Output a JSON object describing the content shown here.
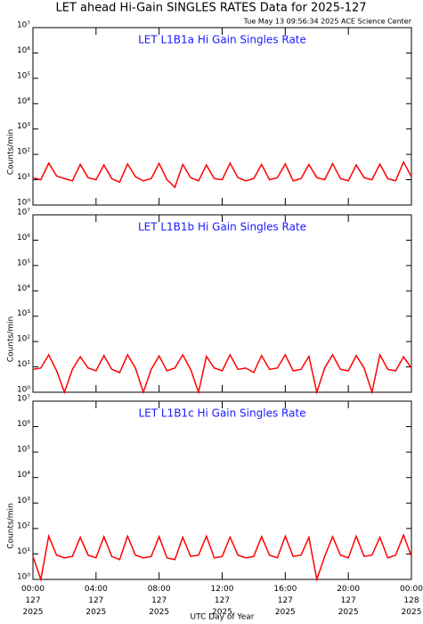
{
  "title": "LET ahead Hi-Gain SINGLES RATES Data for 2025-127",
  "timestamp": "Tue May 13 09:56:34 2025 ACE Science Center",
  "chart_data": [
    {
      "type": "line",
      "title": "LET L1B1a Hi Gain Singles Rate",
      "ylabel": "Counts/min",
      "log_scale": true,
      "color": "#ff0000",
      "ylim": [
        1,
        10000000
      ],
      "yticks": [
        {
          "value": 1,
          "label": "10⁰"
        },
        {
          "value": 10,
          "label": "10¹"
        },
        {
          "value": 100,
          "label": "10²"
        },
        {
          "value": 1000,
          "label": "10³"
        },
        {
          "value": 10000,
          "label": "10⁴"
        },
        {
          "value": 100000,
          "label": "10⁵"
        },
        {
          "value": 1000000,
          "label": "10⁶"
        },
        {
          "value": 10000000,
          "label": "10⁷"
        }
      ],
      "xlim": [
        0,
        24
      ],
      "xticks": [
        0,
        4,
        8,
        12,
        16,
        20,
        24
      ],
      "x": [
        0,
        0.5,
        1,
        1.5,
        2,
        2.5,
        3,
        3.5,
        4,
        4.5,
        5,
        5.5,
        6,
        6.5,
        7,
        7.5,
        8,
        8.5,
        9,
        9.5,
        10,
        10.5,
        11,
        11.5,
        12,
        12.5,
        13,
        13.5,
        14,
        14.5,
        15,
        15.5,
        16,
        16.5,
        17,
        17.5,
        18,
        18.5,
        19,
        19.5,
        20,
        20.5,
        21,
        21.5,
        22,
        22.5,
        23,
        23.5,
        24
      ],
      "values": [
        12,
        10,
        45,
        14,
        11,
        9,
        40,
        12,
        10,
        38,
        11,
        8,
        42,
        13,
        9,
        11,
        44,
        10,
        5,
        40,
        12,
        9,
        38,
        11,
        10,
        45,
        12,
        9,
        11,
        40,
        10,
        12,
        42,
        9,
        11,
        40,
        12,
        10,
        43,
        11,
        9,
        38,
        12,
        10,
        41,
        11,
        9,
        50,
        13
      ]
    },
    {
      "type": "line",
      "title": "LET L1B1b Hi Gain Singles Rate",
      "ylabel": "Counts/min",
      "log_scale": true,
      "color": "#ff0000",
      "ylim": [
        1,
        10000000
      ],
      "yticks": [
        {
          "value": 1,
          "label": "10⁰"
        },
        {
          "value": 10,
          "label": "10¹"
        },
        {
          "value": 100,
          "label": "10²"
        },
        {
          "value": 1000,
          "label": "10³"
        },
        {
          "value": 10000,
          "label": "10⁴"
        },
        {
          "value": 100000,
          "label": "10⁵"
        },
        {
          "value": 1000000,
          "label": "10⁶"
        },
        {
          "value": 10000000,
          "label": "10⁷"
        }
      ],
      "xlim": [
        0,
        24
      ],
      "xticks": [
        0,
        4,
        8,
        12,
        16,
        20,
        24
      ],
      "x": [
        0,
        0.5,
        1,
        1.5,
        2,
        2.5,
        3,
        3.5,
        4,
        4.5,
        5,
        5.5,
        6,
        6.5,
        7,
        7.5,
        8,
        8.5,
        9,
        9.5,
        10,
        10.5,
        11,
        11.5,
        12,
        12.5,
        13,
        13.5,
        14,
        14.5,
        15,
        15.5,
        16,
        16.5,
        17,
        17.5,
        18,
        18.5,
        19,
        19.5,
        20,
        20.5,
        21,
        21.5,
        22,
        22.5,
        23,
        23.5,
        24
      ],
      "values": [
        8,
        9,
        30,
        7,
        1,
        8,
        25,
        9,
        7,
        28,
        8,
        6,
        30,
        9,
        1,
        8,
        27,
        7,
        9,
        30,
        8,
        1,
        26,
        9,
        7,
        30,
        8,
        9,
        6,
        28,
        8,
        9,
        30,
        7,
        8,
        26,
        1,
        9,
        30,
        8,
        7,
        28,
        9,
        1,
        30,
        8,
        7,
        25,
        9
      ]
    },
    {
      "type": "line",
      "title": "LET L1B1c Hi Gain Singles Rate",
      "ylabel": "Counts/min",
      "log_scale": true,
      "color": "#ff0000",
      "xlabel": "UTC Day of Year",
      "ylim": [
        1,
        10000000
      ],
      "yticks": [
        {
          "value": 1,
          "label": "10⁰"
        },
        {
          "value": 10,
          "label": "10¹"
        },
        {
          "value": 100,
          "label": "10²"
        },
        {
          "value": 1000,
          "label": "10³"
        },
        {
          "value": 10000,
          "label": "10⁴"
        },
        {
          "value": 100000,
          "label": "10⁵"
        },
        {
          "value": 1000000,
          "label": "10⁶"
        },
        {
          "value": 10000000,
          "label": "10⁷"
        }
      ],
      "xlim": [
        0,
        24
      ],
      "xticks": [
        {
          "value": 0,
          "label": "00:00 127 2025"
        },
        {
          "value": 4,
          "label": "04:00 127 2025"
        },
        {
          "value": 8,
          "label": "08:00 127 2025"
        },
        {
          "value": 12,
          "label": "12:00 127 2025"
        },
        {
          "value": 16,
          "label": "16:00 127 2025"
        },
        {
          "value": 20,
          "label": "20:00 127 2025"
        },
        {
          "value": 24,
          "label": "00:00 128 2025"
        }
      ],
      "x": [
        0,
        0.5,
        1,
        1.5,
        2,
        2.5,
        3,
        3.5,
        4,
        4.5,
        5,
        5.5,
        6,
        6.5,
        7,
        7.5,
        8,
        8.5,
        9,
        9.5,
        10,
        10.5,
        11,
        11.5,
        12,
        12.5,
        13,
        13.5,
        14,
        14.5,
        15,
        15.5,
        16,
        16.5,
        17,
        17.5,
        18,
        18.5,
        19,
        19.5,
        20,
        20.5,
        21,
        21.5,
        22,
        22.5,
        23,
        23.5,
        24
      ],
      "values": [
        8,
        1,
        50,
        9,
        7,
        8,
        45,
        9,
        7,
        48,
        8,
        6,
        50,
        9,
        7,
        8,
        48,
        7,
        6,
        45,
        8,
        9,
        50,
        7,
        8,
        46,
        9,
        7,
        8,
        48,
        9,
        7,
        50,
        8,
        9,
        45,
        1,
        8,
        48,
        9,
        7,
        50,
        8,
        9,
        45,
        7,
        9,
        55,
        8
      ]
    }
  ]
}
